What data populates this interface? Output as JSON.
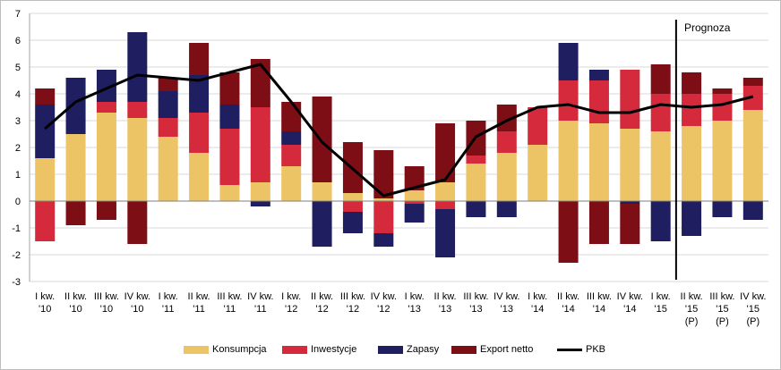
{
  "chart_data": {
    "type": "bar",
    "stacked": true,
    "ylim": [
      -3,
      7
    ],
    "yticks": [
      -3,
      -2,
      -1,
      0,
      1,
      2,
      3,
      4,
      5,
      6,
      7
    ],
    "grid": true,
    "legend_position": "bottom",
    "annotation": "Prognoza",
    "categories": [
      [
        "I kw.",
        "'10"
      ],
      [
        "II kw.",
        "'10"
      ],
      [
        "III kw.",
        "'10"
      ],
      [
        "IV kw.",
        "'10"
      ],
      [
        "I kw.",
        "'11"
      ],
      [
        "II kw.",
        "'11"
      ],
      [
        "III kw.",
        "'11"
      ],
      [
        "IV kw.",
        "'11"
      ],
      [
        "I kw.",
        "'12"
      ],
      [
        "II kw.",
        "'12"
      ],
      [
        "III kw.",
        "'12"
      ],
      [
        "IV kw.",
        "'12"
      ],
      [
        "I kw.",
        "'13"
      ],
      [
        "II kw.",
        "'13"
      ],
      [
        "III kw.",
        "'13"
      ],
      [
        "IV kw.",
        "'13"
      ],
      [
        "I kw.",
        "'14"
      ],
      [
        "II kw.",
        "'14"
      ],
      [
        "III kw.",
        "'14"
      ],
      [
        "IV kw.",
        "'14"
      ],
      [
        "I kw.",
        "'15"
      ],
      [
        "II kw.",
        "'15",
        "(P)"
      ],
      [
        "III kw.",
        "'15",
        "(P)"
      ],
      [
        "IV kw.",
        "'15",
        "(P)"
      ]
    ],
    "series": [
      {
        "name": "Konsumpcja",
        "color": "#ecc466",
        "values": [
          1.6,
          2.5,
          3.3,
          3.1,
          2.4,
          1.8,
          0.6,
          0.7,
          1.3,
          0.7,
          0.3,
          0.1,
          0.4,
          0.7,
          1.4,
          1.8,
          2.1,
          3.0,
          2.9,
          2.7,
          2.6,
          2.8,
          3.0,
          3.4
        ]
      },
      {
        "name": "Inwestycje",
        "color": "#d42a3c",
        "values": [
          -1.5,
          0,
          0.4,
          0.6,
          0.7,
          1.5,
          2.1,
          2.8,
          0.8,
          0,
          -0.4,
          -1.2,
          -0.1,
          -0.3,
          0.3,
          0.8,
          1.4,
          1.5,
          1.6,
          2.2,
          1.4,
          1.2,
          1.0,
          0.9
        ]
      },
      {
        "name": "Zapasy",
        "color": "#1e1e60",
        "values": [
          2.0,
          2.1,
          1.2,
          2.6,
          1.0,
          1.4,
          0.9,
          -0.2,
          0.5,
          -1.7,
          -0.8,
          -0.5,
          -0.7,
          -1.8,
          -0.6,
          -0.6,
          0,
          1.4,
          0.4,
          -0.1,
          -1.5,
          -1.3,
          -0.6,
          -0.7
        ]
      },
      {
        "name": "Export netto",
        "color": "#7d0e16",
        "values": [
          0.6,
          -0.9,
          -0.7,
          -1.6,
          0.5,
          1.2,
          1.2,
          1.8,
          1.1,
          3.2,
          1.9,
          1.8,
          0.9,
          2.2,
          1.3,
          1.0,
          0,
          -2.3,
          -1.6,
          -1.5,
          1.1,
          0.8,
          0.2,
          0.3
        ]
      }
    ],
    "line": {
      "name": "PKB",
      "color": "#000000",
      "values": [
        2.7,
        3.7,
        4.2,
        4.7,
        4.6,
        4.5,
        4.8,
        5.1,
        3.7,
        2.2,
        1.2,
        0.2,
        0.5,
        0.8,
        2.4,
        3.0,
        3.5,
        3.6,
        3.3,
        3.3,
        3.6,
        3.5,
        3.6,
        3.9
      ]
    },
    "forecast_start_index": 21
  }
}
